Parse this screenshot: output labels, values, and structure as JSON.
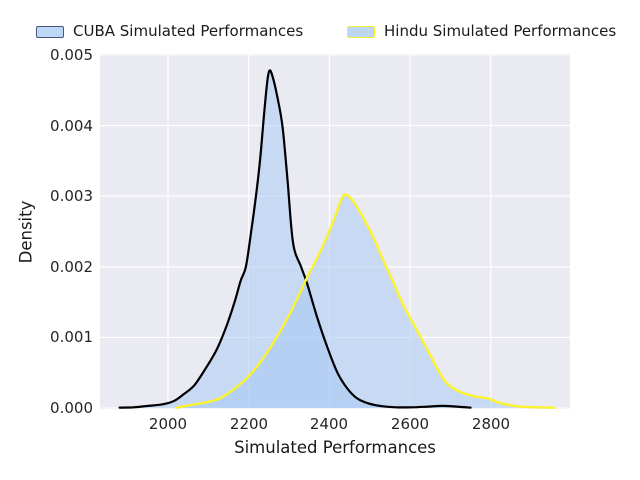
{
  "chart_data": {
    "type": "area",
    "subtype": "kde-density",
    "title": "",
    "xlabel": "Simulated Performances",
    "ylabel": "Density",
    "xlim": [
      1830,
      2996
    ],
    "ylim": [
      0,
      0.005
    ],
    "grid": true,
    "plot_background_color": "#EAEAF2",
    "grid_color": "#FFFFFF",
    "xticks": [
      2000,
      2200,
      2400,
      2600,
      2800
    ],
    "xtick_labels": [
      "2000",
      "2200",
      "2400",
      "2600",
      "2800"
    ],
    "yticks": [
      0,
      0.001,
      0.002,
      0.003,
      0.004,
      0.005
    ],
    "ytick_labels": [
      "0.000",
      "0.001",
      "0.002",
      "0.003",
      "0.004",
      "0.005"
    ],
    "legend": {
      "position": "top",
      "frame": false,
      "items": [
        {
          "label": "CUBA Simulated Performances",
          "swatch_fill": "#BDD8F6",
          "swatch_edge": "#4A5878"
        },
        {
          "label": "Hindu Simulated Performances",
          "swatch_fill": "#BDD8F6",
          "swatch_edge": "#F4F12C"
        }
      ]
    },
    "series": [
      {
        "name": "CUBA Simulated Performances",
        "line_color": "#000000",
        "line_width": 2.2,
        "fill_color": "rgba(164,199,244,0.5)",
        "peak": {
          "x": 2250,
          "density": 0.0048
        },
        "points": [
          [
            1880,
            5e-06
          ],
          [
            1915,
            1e-05
          ],
          [
            1950,
            3e-05
          ],
          [
            1985,
            5e-05
          ],
          [
            2015,
            0.0001
          ],
          [
            2040,
            0.0002
          ],
          [
            2065,
            0.00032
          ],
          [
            2090,
            0.00053
          ],
          [
            2120,
            0.00082
          ],
          [
            2145,
            0.00116
          ],
          [
            2165,
            0.0015
          ],
          [
            2180,
            0.0018
          ],
          [
            2193,
            0.002
          ],
          [
            2205,
            0.00245
          ],
          [
            2218,
            0.003
          ],
          [
            2228,
            0.0035
          ],
          [
            2238,
            0.00415
          ],
          [
            2246,
            0.00462
          ],
          [
            2252,
            0.00478
          ],
          [
            2260,
            0.00468
          ],
          [
            2272,
            0.00438
          ],
          [
            2284,
            0.00398
          ],
          [
            2296,
            0.00325
          ],
          [
            2310,
            0.00234
          ],
          [
            2330,
            0.002
          ],
          [
            2345,
            0.00176
          ],
          [
            2370,
            0.00128
          ],
          [
            2395,
            0.00086
          ],
          [
            2420,
            0.0005
          ],
          [
            2444,
            0.00028
          ],
          [
            2468,
            0.00014
          ],
          [
            2494,
            7e-05
          ],
          [
            2525,
            3e-05
          ],
          [
            2565,
            1e-05
          ],
          [
            2605,
            1e-05
          ],
          [
            2645,
            2e-05
          ],
          [
            2680,
            3e-05
          ],
          [
            2715,
            2e-05
          ],
          [
            2750,
            5e-06
          ]
        ]
      },
      {
        "name": "Hindu Simulated Performances",
        "line_color": "#FBF32E",
        "line_width": 2.4,
        "fill_color": "rgba(164,199,244,0.5)",
        "peak": {
          "x": 2435,
          "density": 0.003
        },
        "points": [
          [
            2020,
            5e-06
          ],
          [
            2055,
            4e-05
          ],
          [
            2095,
            8e-05
          ],
          [
            2130,
            0.00014
          ],
          [
            2162,
            0.00026
          ],
          [
            2195,
            0.00042
          ],
          [
            2228,
            0.00064
          ],
          [
            2261,
            0.00092
          ],
          [
            2294,
            0.00125
          ],
          [
            2320,
            0.00154
          ],
          [
            2345,
            0.00185
          ],
          [
            2370,
            0.00213
          ],
          [
            2392,
            0.0024
          ],
          [
            2412,
            0.00268
          ],
          [
            2426,
            0.0029
          ],
          [
            2437,
            0.00302
          ],
          [
            2450,
            0.00299
          ],
          [
            2466,
            0.00287
          ],
          [
            2490,
            0.00263
          ],
          [
            2512,
            0.00238
          ],
          [
            2532,
            0.00211
          ],
          [
            2560,
            0.00176
          ],
          [
            2584,
            0.00145
          ],
          [
            2618,
            0.00109
          ],
          [
            2650,
            0.00075
          ],
          [
            2684,
            0.0004
          ],
          [
            2716,
            0.00025
          ],
          [
            2755,
            0.00017
          ],
          [
            2790,
            0.00014
          ],
          [
            2824,
            7e-05
          ],
          [
            2872,
            2e-05
          ],
          [
            2915,
            1e-05
          ],
          [
            2958,
            5e-06
          ]
        ]
      }
    ]
  }
}
